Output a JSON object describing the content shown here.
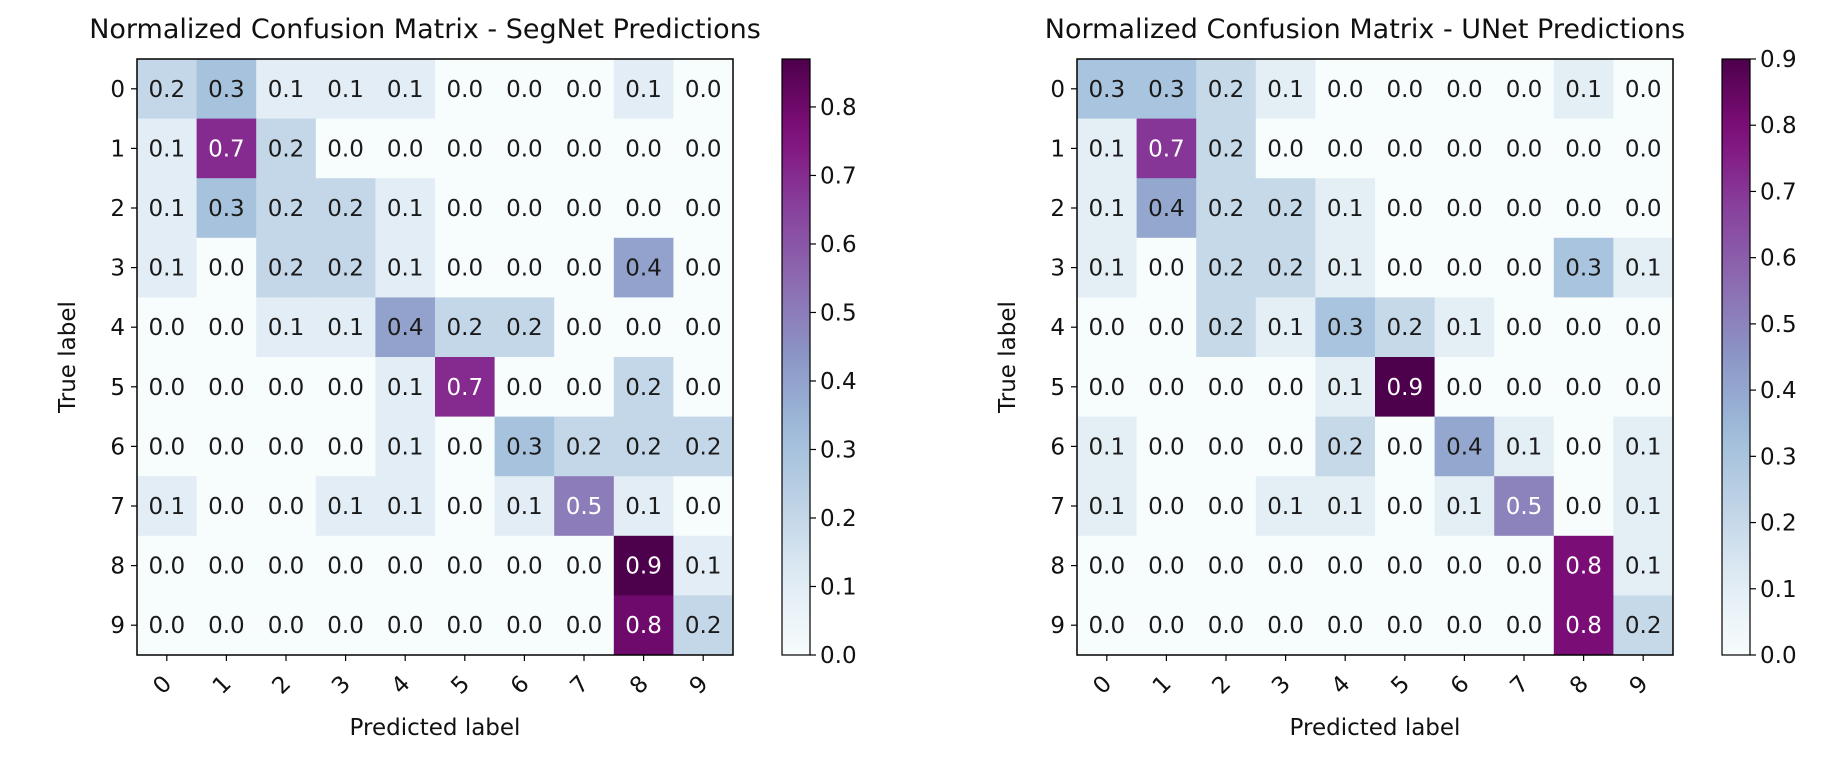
{
  "chart_data": [
    {
      "type": "heatmap",
      "title": "Normalized Confusion Matrix - SegNet Predictions",
      "xlabel": "Predicted label",
      "ylabel": "True label",
      "x_categories": [
        "0",
        "1",
        "2",
        "3",
        "4",
        "5",
        "6",
        "7",
        "8",
        "9"
      ],
      "y_categories": [
        "0",
        "1",
        "2",
        "3",
        "4",
        "5",
        "6",
        "7",
        "8",
        "9"
      ],
      "values": [
        [
          0.2,
          0.3,
          0.1,
          0.1,
          0.1,
          0.0,
          0.0,
          0.0,
          0.1,
          0.0
        ],
        [
          0.1,
          0.7,
          0.2,
          0.0,
          0.0,
          0.0,
          0.0,
          0.0,
          0.0,
          0.0
        ],
        [
          0.1,
          0.3,
          0.2,
          0.2,
          0.1,
          0.0,
          0.0,
          0.0,
          0.0,
          0.0
        ],
        [
          0.1,
          0.0,
          0.2,
          0.2,
          0.1,
          0.0,
          0.0,
          0.0,
          0.4,
          0.0
        ],
        [
          0.0,
          0.0,
          0.1,
          0.1,
          0.4,
          0.2,
          0.2,
          0.0,
          0.0,
          0.0
        ],
        [
          0.0,
          0.0,
          0.0,
          0.0,
          0.1,
          0.7,
          0.0,
          0.0,
          0.2,
          0.0
        ],
        [
          0.0,
          0.0,
          0.0,
          0.0,
          0.1,
          0.0,
          0.3,
          0.2,
          0.2,
          0.2
        ],
        [
          0.1,
          0.0,
          0.0,
          0.1,
          0.1,
          0.0,
          0.1,
          0.5,
          0.1,
          0.0
        ],
        [
          0.0,
          0.0,
          0.0,
          0.0,
          0.0,
          0.0,
          0.0,
          0.0,
          0.9,
          0.1
        ],
        [
          0.0,
          0.0,
          0.0,
          0.0,
          0.0,
          0.0,
          0.0,
          0.0,
          0.8,
          0.2
        ]
      ],
      "colorbar": {
        "min": 0.0,
        "max": 0.87,
        "ticks": [
          "0.0",
          "0.1",
          "0.2",
          "0.3",
          "0.4",
          "0.5",
          "0.6",
          "0.7",
          "0.8"
        ]
      },
      "colormap": "BuPu"
    },
    {
      "type": "heatmap",
      "title": "Normalized Confusion Matrix - UNet Predictions",
      "xlabel": "Predicted label",
      "ylabel": "True label",
      "x_categories": [
        "0",
        "1",
        "2",
        "3",
        "4",
        "5",
        "6",
        "7",
        "8",
        "9"
      ],
      "y_categories": [
        "0",
        "1",
        "2",
        "3",
        "4",
        "5",
        "6",
        "7",
        "8",
        "9"
      ],
      "values": [
        [
          0.3,
          0.3,
          0.2,
          0.1,
          0.0,
          0.0,
          0.0,
          0.0,
          0.1,
          0.0
        ],
        [
          0.1,
          0.7,
          0.2,
          0.0,
          0.0,
          0.0,
          0.0,
          0.0,
          0.0,
          0.0
        ],
        [
          0.1,
          0.4,
          0.2,
          0.2,
          0.1,
          0.0,
          0.0,
          0.0,
          0.0,
          0.0
        ],
        [
          0.1,
          0.0,
          0.2,
          0.2,
          0.1,
          0.0,
          0.0,
          0.0,
          0.3,
          0.1
        ],
        [
          0.0,
          0.0,
          0.2,
          0.1,
          0.3,
          0.2,
          0.1,
          0.0,
          0.0,
          0.0
        ],
        [
          0.0,
          0.0,
          0.0,
          0.0,
          0.1,
          0.9,
          0.0,
          0.0,
          0.0,
          0.0
        ],
        [
          0.1,
          0.0,
          0.0,
          0.0,
          0.2,
          0.0,
          0.4,
          0.1,
          0.0,
          0.1
        ],
        [
          0.1,
          0.0,
          0.0,
          0.1,
          0.1,
          0.0,
          0.1,
          0.5,
          0.0,
          0.1
        ],
        [
          0.0,
          0.0,
          0.0,
          0.0,
          0.0,
          0.0,
          0.0,
          0.0,
          0.8,
          0.1
        ],
        [
          0.0,
          0.0,
          0.0,
          0.0,
          0.0,
          0.0,
          0.0,
          0.0,
          0.8,
          0.2
        ]
      ],
      "colorbar": {
        "min": 0.0,
        "max": 0.9,
        "ticks": [
          "0.0",
          "0.1",
          "0.2",
          "0.3",
          "0.4",
          "0.5",
          "0.6",
          "0.7",
          "0.8",
          "0.9"
        ]
      },
      "colormap": "BuPu"
    }
  ]
}
